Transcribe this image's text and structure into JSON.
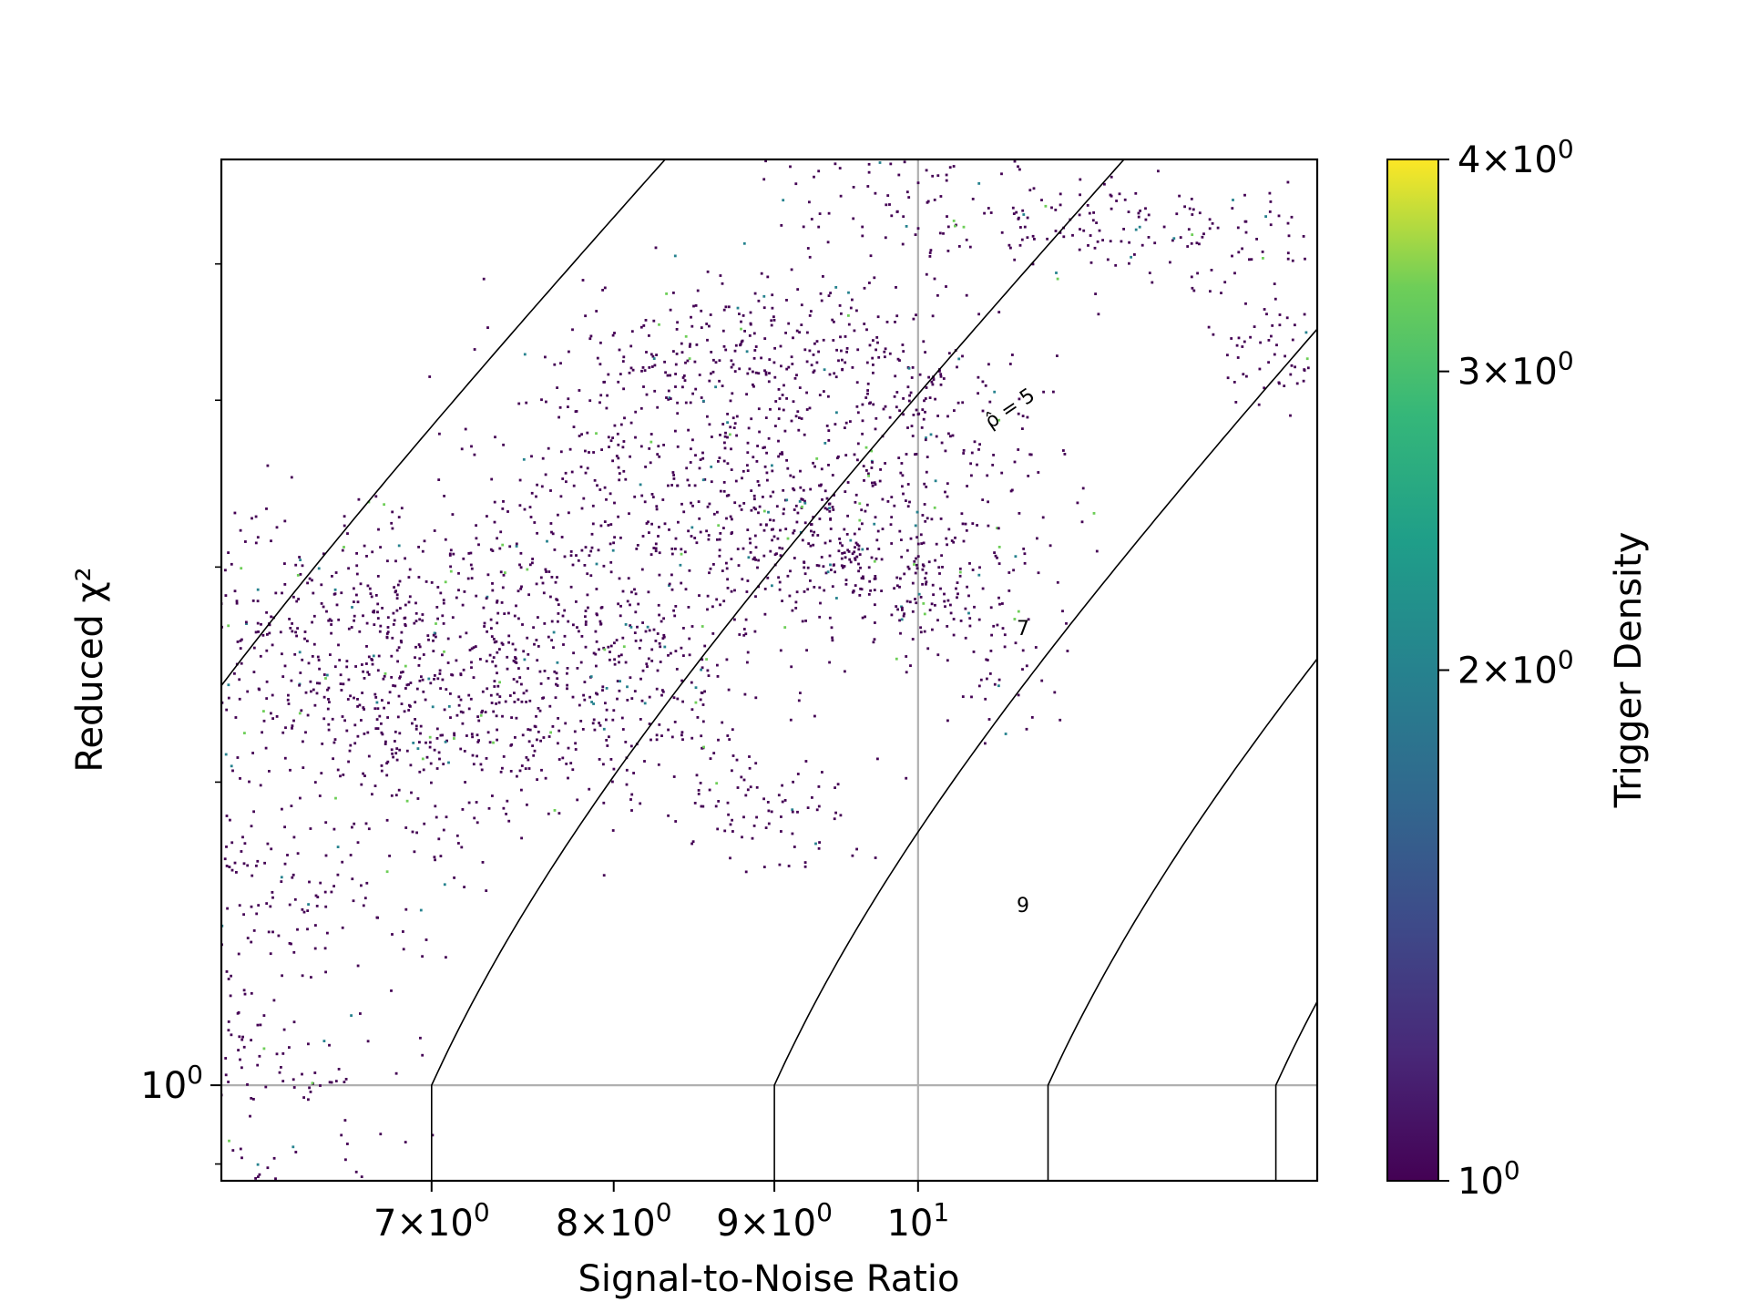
{
  "chart_data": {
    "type": "scatter",
    "title": "",
    "xlabel": "Signal-to-Noise Ratio",
    "ylabel": "Reduced χ²",
    "xscale": "log",
    "yscale": "log",
    "xlim": [
      6.0,
      13.4
    ],
    "ylim": [
      0.88,
      3.45
    ],
    "grid": "lines at x = 10 and y = 1",
    "x_ticks": [
      {
        "value": 7,
        "mantissa": "7",
        "base": "10",
        "exp": "0"
      },
      {
        "value": 8,
        "mantissa": "8",
        "base": "10",
        "exp": "0"
      },
      {
        "value": 9,
        "mantissa": "9",
        "base": "10",
        "exp": "0"
      },
      {
        "value": 10,
        "mantissa": "",
        "base": "10",
        "exp": "1"
      }
    ],
    "y_ticks": [
      {
        "value": 1,
        "mantissa": "",
        "base": "10",
        "exp": "0"
      }
    ],
    "contours": [
      {
        "rho_hat": 5,
        "label": "ρ̂ = 5",
        "label_at": [
          10.7,
          2.47
        ],
        "label_rotation": -34
      },
      {
        "rho_hat": 7,
        "label": "7",
        "label_at": [
          10.8,
          1.84
        ],
        "label_rotation": 0
      },
      {
        "rho_hat": 9,
        "label": "9",
        "label_at": [
          10.8,
          1.27
        ],
        "label_rotation": 0
      },
      {
        "rho_hat": 11,
        "label": "",
        "label_at": null,
        "label_rotation": 0
      },
      {
        "rho_hat": 13,
        "label": "",
        "label_at": null,
        "label_rotation": 0
      }
    ],
    "colorbar": {
      "label": "Trigger Density",
      "scale": "log",
      "range": [
        1,
        4
      ],
      "colormap": "viridis",
      "ticks": [
        {
          "value": 1,
          "mantissa": "",
          "base": "10",
          "exp": "0"
        },
        {
          "value": 2,
          "mantissa": "2",
          "base": "10",
          "exp": "0"
        },
        {
          "value": 3,
          "mantissa": "3",
          "base": "10",
          "exp": "0"
        },
        {
          "value": 4,
          "mantissa": "4",
          "base": "10",
          "exp": "0"
        }
      ]
    },
    "clusters": [
      {
        "x": 6.05,
        "y": 0.97,
        "sx": 0.035,
        "sy": 0.09,
        "n": 260
      },
      {
        "x": 6.15,
        "y": 1.32,
        "sx": 0.05,
        "sy": 0.045,
        "n": 180
      },
      {
        "x": 6.45,
        "y": 1.72,
        "sx": 0.06,
        "sy": 0.055,
        "n": 520
      },
      {
        "x": 6.7,
        "y": 1.92,
        "sx": 0.04,
        "sy": 0.045,
        "n": 150
      },
      {
        "x": 7.2,
        "y": 1.63,
        "sx": 0.04,
        "sy": 0.045,
        "n": 160
      },
      {
        "x": 7.35,
        "y": 1.86,
        "sx": 0.04,
        "sy": 0.04,
        "n": 150
      },
      {
        "x": 7.95,
        "y": 1.72,
        "sx": 0.035,
        "sy": 0.04,
        "n": 150
      },
      {
        "x": 8.05,
        "y": 1.83,
        "sx": 0.035,
        "sy": 0.04,
        "n": 130
      },
      {
        "x": 8.95,
        "y": 1.47,
        "sx": 0.025,
        "sy": 0.025,
        "n": 90
      },
      {
        "x": 8.3,
        "y": 2.3,
        "sx": 0.04,
        "sy": 0.04,
        "n": 240
      },
      {
        "x": 8.8,
        "y": 2.2,
        "sx": 0.03,
        "sy": 0.035,
        "n": 170
      },
      {
        "x": 9.4,
        "y": 2.06,
        "sx": 0.03,
        "sy": 0.03,
        "n": 220
      },
      {
        "x": 10.1,
        "y": 1.95,
        "sx": 0.025,
        "sy": 0.03,
        "n": 170
      },
      {
        "x": 10.6,
        "y": 1.72,
        "sx": 0.012,
        "sy": 0.03,
        "n": 30
      },
      {
        "x": 8.7,
        "y": 2.7,
        "sx": 0.035,
        "sy": 0.025,
        "n": 150
      },
      {
        "x": 9.4,
        "y": 2.62,
        "sx": 0.03,
        "sy": 0.04,
        "n": 170
      },
      {
        "x": 10.2,
        "y": 2.45,
        "sx": 0.025,
        "sy": 0.04,
        "n": 120
      },
      {
        "x": 9.8,
        "y": 3.28,
        "sx": 0.025,
        "sy": 0.018,
        "n": 70
      },
      {
        "x": 11.2,
        "y": 3.2,
        "sx": 0.03,
        "sy": 0.02,
        "n": 90
      },
      {
        "x": 12.3,
        "y": 3.1,
        "sx": 0.035,
        "sy": 0.025,
        "n": 100
      },
      {
        "x": 13.05,
        "y": 2.65,
        "sx": 0.015,
        "sy": 0.02,
        "n": 60
      }
    ]
  }
}
